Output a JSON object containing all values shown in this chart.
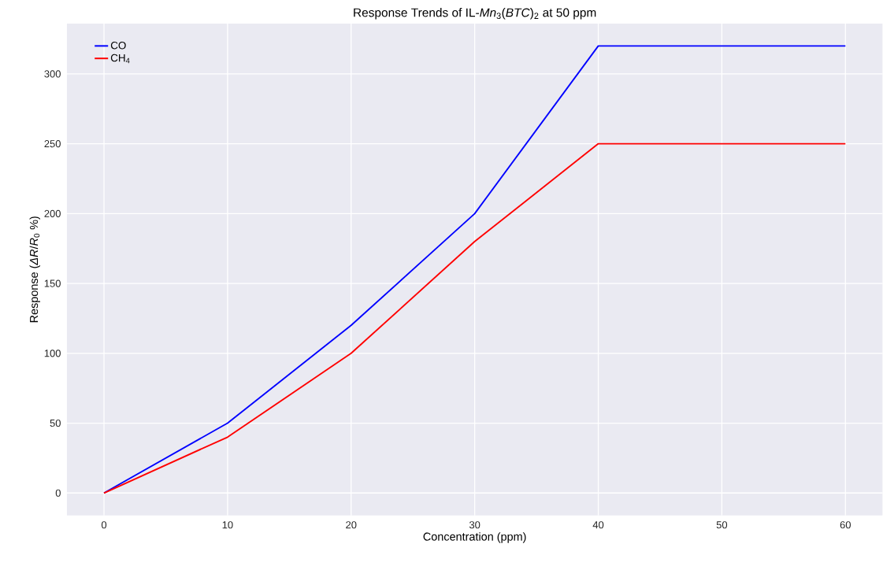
{
  "chart_data": {
    "type": "line",
    "title": "Response Trends of IL-*Mn*$_{3}$(*BTC*)$_{2}$ at 50 ppm",
    "xlabel": "Concentration (ppm)",
    "ylabel": "Response (*ΔR*/*R*$_{0}$ %)",
    "x": [
      0,
      10,
      20,
      30,
      40,
      50,
      60
    ],
    "series": [
      {
        "name": "CO",
        "color": "#0000ff",
        "values": [
          0,
          50,
          120,
          200,
          320,
          320,
          320
        ]
      },
      {
        "name": "CH$_{4}$",
        "color": "#ff0000",
        "values": [
          0,
          40,
          100,
          180,
          250,
          250,
          250
        ]
      }
    ],
    "xlim": [
      -3,
      63
    ],
    "ylim": [
      -16,
      336
    ],
    "xticks": [
      0,
      10,
      20,
      30,
      40,
      50,
      60
    ],
    "yticks": [
      0,
      50,
      100,
      150,
      200,
      250,
      300
    ],
    "grid": true,
    "legend": "top left",
    "marker": "none",
    "line_style": "solid"
  }
}
